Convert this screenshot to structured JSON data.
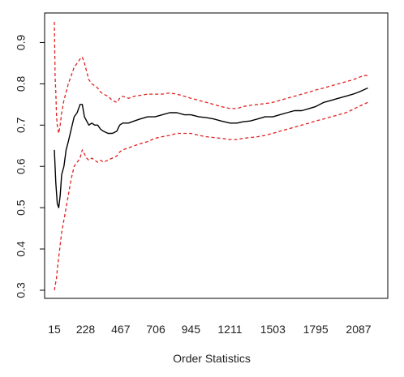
{
  "chart_data": {
    "type": "line",
    "title": "",
    "xlabel": "Order Statistics",
    "ylabel": "",
    "xlim": [
      15,
      2170
    ],
    "ylim": [
      0.3,
      0.95
    ],
    "x_ticks": [
      15,
      228,
      467,
      706,
      945,
      1211,
      1503,
      1795,
      2087
    ],
    "y_ticks": [
      0.3,
      0.4,
      0.5,
      0.6,
      0.7,
      0.8,
      0.9
    ],
    "grid": false,
    "legend": "none",
    "colors": {
      "estimate": "#000000",
      "bounds": "#e02020",
      "frame": "#000000"
    },
    "series": [
      {
        "key": "estimate",
        "style": "solid",
        "x": [
          15,
          25,
          35,
          45,
          55,
          65,
          80,
          95,
          110,
          130,
          150,
          170,
          190,
          205,
          220,
          235,
          250,
          270,
          290,
          310,
          330,
          350,
          380,
          410,
          440,
          460,
          480,
          520,
          560,
          600,
          650,
          700,
          750,
          800,
          850,
          900,
          945,
          1000,
          1050,
          1100,
          1150,
          1211,
          1260,
          1300,
          1350,
          1400,
          1450,
          1503,
          1550,
          1600,
          1650,
          1700,
          1750,
          1795,
          1850,
          1900,
          1950,
          2000,
          2050,
          2087,
          2120,
          2150
        ],
        "y": [
          0.64,
          0.56,
          0.51,
          0.5,
          0.53,
          0.58,
          0.6,
          0.64,
          0.66,
          0.69,
          0.72,
          0.73,
          0.75,
          0.75,
          0.72,
          0.71,
          0.7,
          0.705,
          0.7,
          0.7,
          0.69,
          0.685,
          0.68,
          0.68,
          0.685,
          0.7,
          0.705,
          0.705,
          0.71,
          0.715,
          0.72,
          0.72,
          0.725,
          0.73,
          0.73,
          0.725,
          0.725,
          0.72,
          0.718,
          0.715,
          0.71,
          0.705,
          0.705,
          0.708,
          0.71,
          0.715,
          0.72,
          0.72,
          0.725,
          0.73,
          0.735,
          0.735,
          0.74,
          0.745,
          0.755,
          0.76,
          0.765,
          0.77,
          0.775,
          0.78,
          0.785,
          0.79
        ]
      },
      {
        "key": "bounds",
        "style": "dashed",
        "x": [
          15,
          20,
          25,
          30,
          35,
          45,
          55,
          65,
          80,
          95,
          110,
          130,
          150,
          170,
          190,
          205,
          220,
          235,
          250,
          270,
          290,
          310,
          330,
          350,
          380,
          410,
          440,
          460,
          480,
          520,
          560,
          600,
          650,
          700,
          750,
          800,
          850,
          900,
          945,
          1000,
          1050,
          1100,
          1150,
          1211,
          1260,
          1300,
          1350,
          1400,
          1450,
          1503,
          1550,
          1600,
          1650,
          1700,
          1750,
          1795,
          1850,
          1900,
          1950,
          2000,
          2050,
          2087,
          2120,
          2150
        ],
        "y": [
          0.95,
          0.82,
          0.78,
          0.72,
          0.7,
          0.68,
          0.7,
          0.73,
          0.76,
          0.78,
          0.8,
          0.82,
          0.84,
          0.85,
          0.86,
          0.865,
          0.85,
          0.83,
          0.81,
          0.8,
          0.795,
          0.79,
          0.78,
          0.775,
          0.77,
          0.76,
          0.755,
          0.765,
          0.77,
          0.765,
          0.77,
          0.772,
          0.775,
          0.775,
          0.775,
          0.778,
          0.775,
          0.77,
          0.765,
          0.76,
          0.755,
          0.75,
          0.745,
          0.74,
          0.74,
          0.745,
          0.748,
          0.75,
          0.752,
          0.755,
          0.76,
          0.765,
          0.77,
          0.775,
          0.78,
          0.785,
          0.79,
          0.795,
          0.8,
          0.805,
          0.81,
          0.815,
          0.82,
          0.82
        ]
      },
      {
        "key": "bounds",
        "style": "dashed",
        "x": [
          15,
          20,
          25,
          30,
          35,
          45,
          55,
          65,
          80,
          95,
          110,
          130,
          150,
          170,
          190,
          205,
          220,
          235,
          250,
          270,
          290,
          310,
          330,
          350,
          380,
          410,
          440,
          460,
          480,
          520,
          560,
          600,
          650,
          700,
          750,
          800,
          850,
          900,
          945,
          1000,
          1050,
          1100,
          1150,
          1211,
          1260,
          1300,
          1350,
          1400,
          1450,
          1503,
          1550,
          1600,
          1650,
          1700,
          1750,
          1795,
          1850,
          1900,
          1950,
          2000,
          2050,
          2087,
          2120,
          2150
        ],
        "y": [
          0.3,
          0.31,
          0.32,
          0.33,
          0.35,
          0.38,
          0.41,
          0.44,
          0.47,
          0.5,
          0.53,
          0.57,
          0.6,
          0.61,
          0.62,
          0.64,
          0.63,
          0.62,
          0.615,
          0.62,
          0.615,
          0.61,
          0.615,
          0.61,
          0.615,
          0.62,
          0.625,
          0.635,
          0.64,
          0.645,
          0.65,
          0.655,
          0.66,
          0.668,
          0.672,
          0.675,
          0.68,
          0.68,
          0.68,
          0.675,
          0.672,
          0.67,
          0.668,
          0.665,
          0.665,
          0.668,
          0.67,
          0.672,
          0.675,
          0.68,
          0.685,
          0.69,
          0.695,
          0.7,
          0.705,
          0.71,
          0.715,
          0.72,
          0.725,
          0.73,
          0.738,
          0.745,
          0.75,
          0.755
        ]
      }
    ]
  }
}
